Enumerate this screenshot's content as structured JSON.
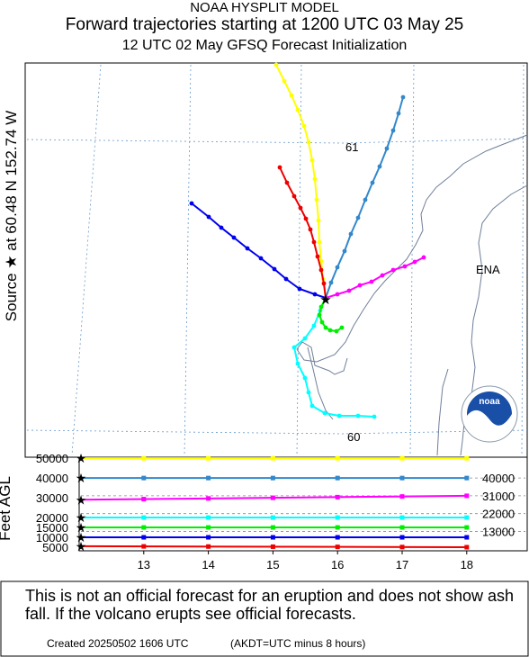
{
  "header": {
    "model": "NOAA HYSPLIT MODEL",
    "title": "Forward trajectories starting at 1200 UTC 03 May 25",
    "subtitle": "12 UTC 02 May     GFSQ  Forecast Initialization"
  },
  "side_label": "Source ★  at   60.48 N  152.74 W",
  "map": {
    "lat_labels": [
      "61",
      "60"
    ],
    "place_label": "ENA",
    "logo_text": "noaa",
    "colors": {
      "grid": "#6699cc",
      "coast": "#6f7f99",
      "label": "#6a90bb"
    }
  },
  "chart_data": {
    "type": "line",
    "title": "Forward trajectories starting at 1200 UTC 03 May 25",
    "source": {
      "lat": 60.48,
      "lon": -152.74
    },
    "series": [
      {
        "color": "#ffff00",
        "start_height_ft": 50000
      },
      {
        "color": "#3388cc",
        "start_height_ft": 40000
      },
      {
        "color": "#ff00ff",
        "start_height_ft": 30000
      },
      {
        "color": "#00ffff",
        "start_height_ft": 20000
      },
      {
        "color": "#00ee00",
        "start_height_ft": 15000
      },
      {
        "color": "#0000ee",
        "start_height_ft": 10000
      },
      {
        "color": "#ee0000",
        "start_height_ft": 5000
      }
    ],
    "height_panel": {
      "ylabel": "Feet AGL",
      "x_ticks": [
        "13",
        "14",
        "15",
        "16",
        "17",
        "18"
      ],
      "y_ticks_left": [
        "50000",
        "40000",
        "30000",
        "20000",
        "15000",
        "10000",
        "5000"
      ],
      "y_ticks_right": [
        "40000",
        "31000",
        "22000",
        "13000"
      ]
    }
  },
  "disclaimer": "This is not an official forecast for an eruption and does not show ash fall. If the volcano erupts see official forecasts.",
  "footer": {
    "created": "Created 20250502 1606 UTC",
    "timezone": "(AKDT=UTC minus 8 hours)"
  }
}
